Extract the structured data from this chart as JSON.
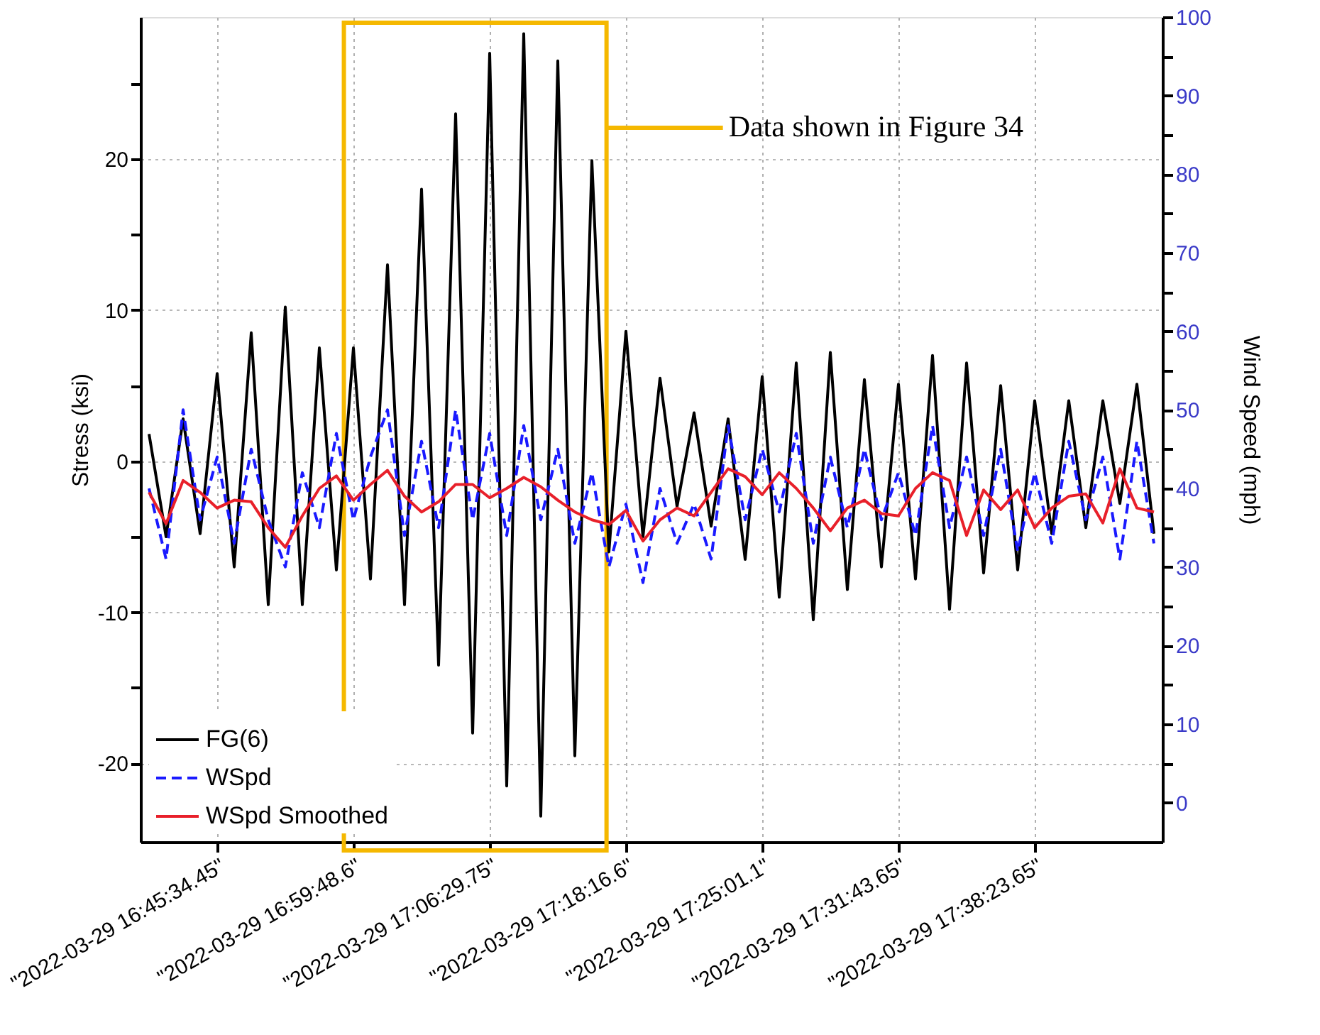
{
  "chart_data": {
    "type": "line",
    "ylabel": "Stress (ksi)",
    "y2label": "Wind Speed (mph)",
    "categories": [
      null,
      null,
      null,
      null,
      "\"2022-03-29 16:45:34.45\"",
      null,
      null,
      null,
      null,
      null,
      null,
      null,
      "\"2022-03-29 16:59:48.6\"",
      null,
      null,
      null,
      null,
      null,
      null,
      null,
      "\"2022-03-29 17:06:29.75\"",
      null,
      null,
      null,
      null,
      null,
      null,
      null,
      "\"2022-03-29 17:18:16.6\"",
      null,
      null,
      null,
      null,
      null,
      null,
      null,
      "\"2022-03-29 17:25:01.1\"",
      null,
      null,
      null,
      null,
      null,
      null,
      null,
      "\"2022-03-29 17:31:43.65\"",
      null,
      null,
      null,
      null,
      null,
      null,
      null,
      "\"2022-03-29 17:38:23.65\"",
      null,
      null,
      null,
      null,
      null,
      null,
      null
    ],
    "ylim": [
      -25.2,
      29.4
    ],
    "yticks": [
      -20,
      {
        "value": -15,
        "label": null
      },
      -10,
      {
        "value": -5,
        "label": null
      },
      0,
      {
        "value": 5,
        "label": null
      },
      10,
      {
        "value": 15,
        "label": null
      },
      20,
      {
        "value": 25,
        "label": null
      }
    ],
    "y2lim": [
      -5,
      100
    ],
    "y2ticks": [
      0,
      {
        "value": 5,
        "label": null
      },
      10,
      {
        "value": 15,
        "label": null
      },
      20,
      {
        "value": 25,
        "label": null
      },
      30,
      {
        "value": 35,
        "label": null
      },
      40,
      {
        "value": 45,
        "label": null
      },
      50,
      {
        "value": 55,
        "label": null
      },
      60,
      {
        "value": 65,
        "label": null
      },
      70,
      {
        "value": 75,
        "label": null
      },
      80,
      {
        "value": 85,
        "label": null
      },
      90,
      {
        "value": 95,
        "label": null
      },
      100
    ],
    "grid": true,
    "legend": "bottom left",
    "annotations": [
      "Data shown in Figure 34"
    ],
    "series": [
      {
        "name": "FG(6)",
        "color": "#000000",
        "line_style": "solid",
        "values": [
          1.8,
          -5,
          2.8,
          -4.8,
          5.8,
          -7,
          8.5,
          -9.5,
          10.2,
          -9.5,
          7.5,
          -7.2,
          7.5,
          -7.8,
          13,
          -9.5,
          18,
          -13.5,
          23,
          -18,
          27,
          -21.5,
          28.3,
          -23.5,
          26.5,
          -19.5,
          19.9,
          -6,
          8.6,
          -5,
          5.5,
          -3,
          3.2,
          -4.3,
          2.8,
          -6.5,
          5.6,
          -9,
          6.5,
          -10.5,
          7.2,
          -8.5,
          5.4,
          -7,
          5.1,
          -7.8,
          7,
          -9.8,
          6.5,
          -7.4,
          5,
          -7.2,
          4,
          -4.8,
          4,
          -4.4,
          4,
          -2.8,
          5.1,
          -4.8
        ]
      },
      {
        "name": "WSpd",
        "color": "#1a1aff",
        "axis": "y2",
        "line_style": "dashed",
        "values": [
          40,
          31,
          50,
          36,
          44,
          33,
          45,
          36,
          30,
          42,
          35,
          47,
          36,
          44,
          50,
          34,
          46,
          35,
          50,
          36,
          47,
          34,
          48,
          36,
          45,
          33,
          42,
          30,
          38,
          28,
          40,
          33,
          38,
          31,
          48,
          36,
          45,
          37,
          47,
          33,
          44,
          35,
          45,
          36,
          42,
          34,
          48,
          35,
          44,
          34,
          45,
          32,
          42,
          33,
          46,
          36,
          44,
          31,
          46,
          33
        ]
      },
      {
        "name": "WSpd Smoothed",
        "color": "#e8202a",
        "axis": "y2",
        "line_style": "solid",
        "values": [
          39.5,
          35.5,
          41,
          39.5,
          37.5,
          38.5,
          38.3,
          35,
          32.5,
          36.5,
          40,
          41.6,
          38.5,
          40.5,
          42.3,
          39,
          37,
          38.3,
          40.5,
          40.5,
          38.8,
          40,
          41.4,
          40.2,
          38.5,
          37,
          36,
          35.4,
          37.2,
          33.3,
          36,
          37.5,
          36.5,
          39.5,
          42.5,
          41.5,
          39.2,
          42,
          40,
          37.5,
          34.6,
          37.5,
          38.5,
          36.8,
          36.5,
          40,
          42,
          41,
          34,
          39.8,
          37.3,
          39.8,
          35,
          37.5,
          39,
          39.3,
          35.6,
          42.5,
          37.5,
          37
        ]
      }
    ]
  }
}
